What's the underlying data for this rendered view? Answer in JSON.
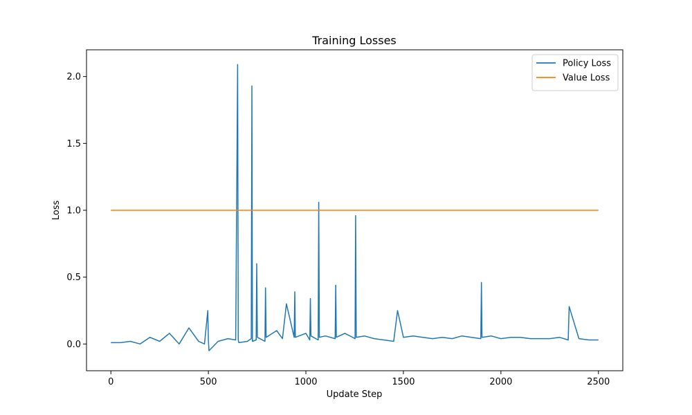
{
  "chart_data": {
    "type": "line",
    "title": "Training Losses",
    "xlabel": "Update Step",
    "ylabel": "Loss",
    "xlim": [
      -125,
      2625
    ],
    "ylim": [
      -0.2,
      2.2
    ],
    "x_ticks": [
      0,
      500,
      1000,
      1500,
      2000,
      2500
    ],
    "x_tick_labels": [
      "0",
      "500",
      "1000",
      "1500",
      "2000",
      "2500"
    ],
    "y_ticks": [
      0.0,
      0.5,
      1.0,
      1.5,
      2.0
    ],
    "y_tick_labels": [
      "0.0",
      "0.5",
      "1.0",
      "1.5",
      "2.0"
    ],
    "grid": false,
    "legend_position": "top-right",
    "series": [
      {
        "name": "Policy Loss",
        "color": "#1f77b4",
        "x": [
          0,
          50,
          100,
          150,
          200,
          250,
          300,
          350,
          400,
          450,
          480,
          497,
          500,
          503,
          550,
          600,
          640,
          650,
          653,
          656,
          700,
          720,
          723,
          726,
          745,
          748,
          751,
          790,
          793,
          796,
          850,
          880,
          900,
          940,
          943,
          946,
          1000,
          1020,
          1023,
          1026,
          1063,
          1066,
          1069,
          1100,
          1150,
          1153,
          1156,
          1200,
          1252,
          1255,
          1258,
          1300,
          1350,
          1400,
          1450,
          1470,
          1500,
          1550,
          1600,
          1650,
          1700,
          1750,
          1800,
          1850,
          1897,
          1900,
          1903,
          1950,
          2000,
          2050,
          2100,
          2150,
          2200,
          2250,
          2300,
          2345,
          2350,
          2400,
          2450,
          2500
        ],
        "y": [
          0.01,
          0.01,
          0.02,
          0.0,
          0.05,
          0.02,
          0.08,
          0.0,
          0.12,
          0.02,
          0.0,
          0.25,
          0.03,
          -0.05,
          0.02,
          0.04,
          0.03,
          2.09,
          0.03,
          0.01,
          0.02,
          0.04,
          1.93,
          0.02,
          0.03,
          0.6,
          0.05,
          0.02,
          0.42,
          0.05,
          0.1,
          0.04,
          0.3,
          0.05,
          0.39,
          0.05,
          0.08,
          0.03,
          0.34,
          0.06,
          0.03,
          1.06,
          0.05,
          0.06,
          0.04,
          0.44,
          0.05,
          0.08,
          0.04,
          0.96,
          0.05,
          0.06,
          0.04,
          0.03,
          0.02,
          0.25,
          0.05,
          0.06,
          0.05,
          0.04,
          0.05,
          0.04,
          0.06,
          0.05,
          0.04,
          0.46,
          0.05,
          0.06,
          0.04,
          0.05,
          0.05,
          0.04,
          0.04,
          0.04,
          0.05,
          0.03,
          0.28,
          0.04,
          0.03,
          0.03
        ]
      },
      {
        "name": "Value Loss",
        "color": "#ff7f0e",
        "x": [
          0,
          2500
        ],
        "y": [
          1.0,
          1.0
        ]
      }
    ]
  }
}
